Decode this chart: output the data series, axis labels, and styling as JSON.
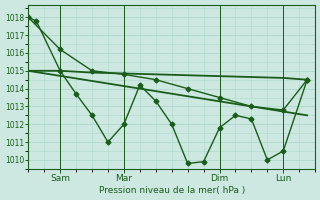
{
  "bg_color": "#cce8e0",
  "grid_color": "#b0d8cc",
  "line_color": "#1a5c1a",
  "title": "Pression niveau de la mer( hPa )",
  "ylim": [
    1009.5,
    1018.7
  ],
  "yticks": [
    1010,
    1011,
    1012,
    1013,
    1014,
    1015,
    1016,
    1017,
    1018
  ],
  "xtick_labels": [
    "Sam",
    "Mar",
    "Dim",
    "Lun"
  ],
  "xtick_positions": [
    24,
    72,
    144,
    192
  ],
  "xlim": [
    0,
    216
  ],
  "line_zigzag_x": [
    0,
    6,
    24,
    36,
    48,
    60,
    72,
    84,
    96,
    108,
    120,
    132,
    144,
    156,
    168,
    180,
    192,
    210
  ],
  "line_zigzag_y": [
    1018,
    1017.8,
    1015.0,
    1013.7,
    1012.5,
    1011.0,
    1012.0,
    1014.2,
    1013.3,
    1012.0,
    1009.8,
    1009.9,
    1011.8,
    1012.5,
    1012.3,
    1010.0,
    1010.5,
    1014.5
  ],
  "line_smooth_x": [
    0,
    24,
    48,
    72,
    96,
    120,
    144,
    168,
    192,
    210
  ],
  "line_smooth_y": [
    1018,
    1016.2,
    1015.0,
    1014.8,
    1014.5,
    1014.0,
    1013.5,
    1013.0,
    1012.8,
    1014.5
  ],
  "line_flat_x": [
    0,
    24,
    48,
    72,
    96,
    120,
    144,
    168,
    192,
    210
  ],
  "line_flat_y": [
    1015.0,
    1015.0,
    1014.9,
    1014.85,
    1014.8,
    1014.75,
    1014.7,
    1014.65,
    1014.6,
    1014.5
  ],
  "line_trend_x": [
    0,
    210
  ],
  "line_trend_y": [
    1015.0,
    1012.5
  ],
  "marker": "D",
  "marker_size": 2.5,
  "linewidth": 1.0,
  "vlines_x": [
    24,
    72,
    144,
    192
  ]
}
